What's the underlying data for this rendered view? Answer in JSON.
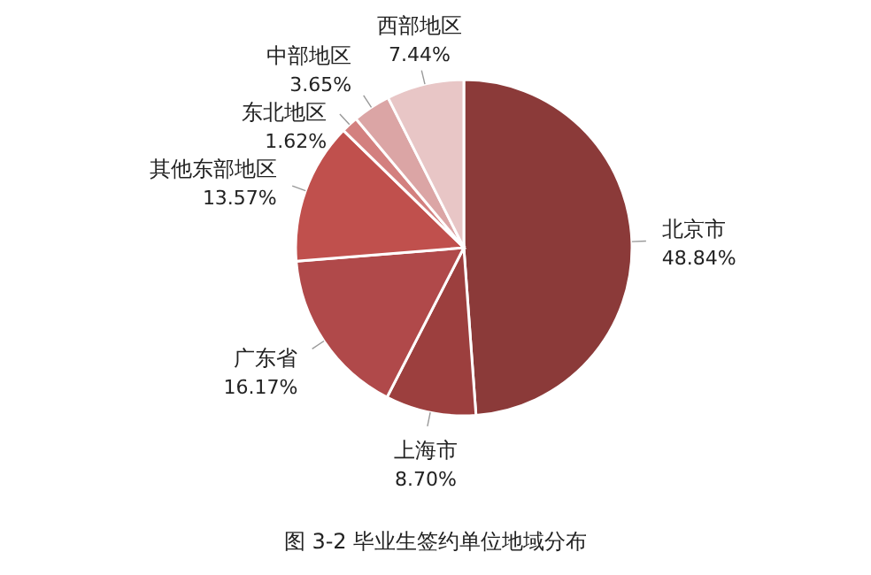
{
  "chart_data": {
    "type": "pie",
    "title": "图 3-2  毕业生签约单位地域分布",
    "categories": [
      "北京市",
      "上海市",
      "广东省",
      "其他东部地区",
      "东北地区",
      "中部地区",
      "西部地区"
    ],
    "values": [
      48.84,
      8.7,
      16.17,
      13.57,
      1.62,
      3.65,
      7.44
    ],
    "value_labels": [
      "48.84%",
      "8.70%",
      "16.17%",
      "13.57%",
      "1.62%",
      "3.65%",
      "7.44%"
    ],
    "colors": [
      "#8b3a39",
      "#9c3f3e",
      "#b0494a",
      "#c0504d",
      "#d3807f",
      "#dba5a5",
      "#e8c6c6"
    ]
  }
}
